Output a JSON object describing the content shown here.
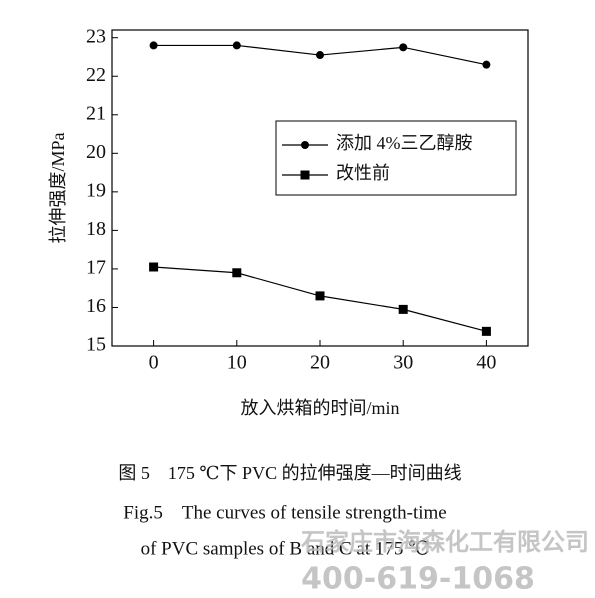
{
  "chart_data": {
    "type": "line",
    "x": [
      0,
      10,
      20,
      30,
      40
    ],
    "series": [
      {
        "name": "添加 4%三乙醇胺",
        "color": "#000000",
        "marker": "circle",
        "values": [
          22.8,
          22.8,
          22.55,
          22.75,
          22.3
        ]
      },
      {
        "name": "改性前",
        "color": "#000000",
        "marker": "square",
        "values": [
          17.05,
          16.9,
          16.3,
          15.95,
          15.38
        ]
      }
    ],
    "xlabel": "放入烘箱的时间/min",
    "ylabel": "拉伸强度/MPa",
    "xlim": [
      -5,
      45
    ],
    "xticks": [
      0,
      10,
      20,
      30,
      40
    ],
    "ylim": [
      15,
      23.2
    ],
    "yticks": [
      15,
      16,
      17,
      18,
      19,
      20,
      21,
      22,
      23
    ],
    "grid": false,
    "legend_position": "center right"
  },
  "caption": {
    "cn": "图 5　175 ℃下 PVC 的拉伸强度—时间曲线",
    "en_line1": "Fig.5　The curves of tensile strength-time",
    "en_line2": "of PVC samples of B and C at 175 ℃"
  },
  "watermark": {
    "company": "石家庄市海森化工有限公司",
    "phone": "400-619-1068"
  }
}
